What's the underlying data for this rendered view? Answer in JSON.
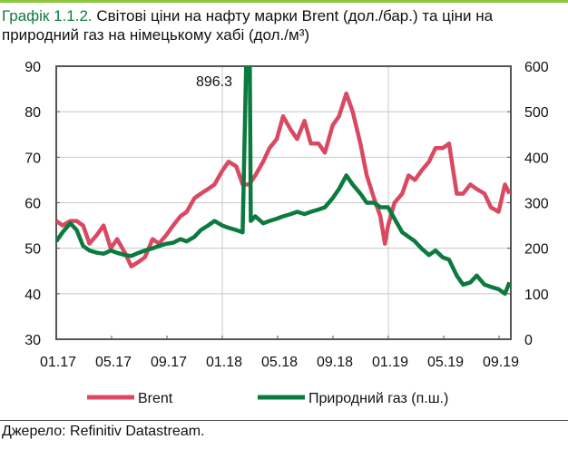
{
  "title": {
    "number": "Графік 1.1.2.",
    "text": "Світові ціни на нафту марки Brent (дол./бар.) та ціни на природний газ на німецькому хабі (дол./м³)"
  },
  "source": "Джерело: Refinitiv Datastream.",
  "colors": {
    "brent": "#d94a62",
    "gas": "#0b7a3e",
    "accent": "#8cc63f"
  },
  "chart_data": {
    "type": "line",
    "xlabel": "",
    "ylabel": "",
    "x_ticks": [
      "01.17",
      "05.17",
      "09.17",
      "01.18",
      "05.18",
      "09.18",
      "01.19",
      "05.19",
      "09.19"
    ],
    "y_left": {
      "lim": [
        30,
        90
      ],
      "ticks": [
        "30",
        "40",
        "50",
        "60",
        "70",
        "80",
        "90"
      ]
    },
    "y_right": {
      "lim": [
        0,
        600
      ],
      "ticks": [
        "0",
        "100",
        "200",
        "300",
        "400",
        "500",
        "600"
      ]
    },
    "grid": true,
    "legend": "bottom",
    "annotation": "896.3",
    "series": [
      {
        "name": "Brent",
        "axis": "left",
        "x": [
          "2017-01-01",
          "2017-01-15",
          "2017-02-01",
          "2017-02-15",
          "2017-03-01",
          "2017-03-15",
          "2017-04-01",
          "2017-04-15",
          "2017-05-01",
          "2017-05-15",
          "2017-06-01",
          "2017-06-15",
          "2017-07-01",
          "2017-07-15",
          "2017-08-01",
          "2017-08-15",
          "2017-09-01",
          "2017-09-15",
          "2017-10-01",
          "2017-10-15",
          "2017-11-01",
          "2017-11-15",
          "2017-12-01",
          "2017-12-15",
          "2018-01-01",
          "2018-01-15",
          "2018-02-01",
          "2018-02-15",
          "2018-03-01",
          "2018-03-15",
          "2018-04-01",
          "2018-04-15",
          "2018-05-01",
          "2018-05-15",
          "2018-06-01",
          "2018-06-15",
          "2018-07-01",
          "2018-07-15",
          "2018-08-01",
          "2018-08-15",
          "2018-09-01",
          "2018-09-15",
          "2018-10-01",
          "2018-10-15",
          "2018-11-01",
          "2018-11-15",
          "2018-12-01",
          "2018-12-15",
          "2018-12-25",
          "2019-01-01",
          "2019-01-15",
          "2019-02-01",
          "2019-02-15",
          "2019-03-01",
          "2019-03-15",
          "2019-04-01",
          "2019-04-15",
          "2019-05-01",
          "2019-05-15",
          "2019-06-01",
          "2019-06-15",
          "2019-07-01",
          "2019-07-15",
          "2019-08-01",
          "2019-08-15",
          "2019-09-01",
          "2019-09-15",
          "2019-09-25"
        ],
        "values": [
          56,
          55,
          56,
          56,
          55,
          51,
          53,
          55,
          50,
          52,
          49,
          46,
          47,
          48,
          52,
          51,
          53,
          55,
          57,
          58,
          61,
          62,
          63,
          64,
          67,
          69,
          68,
          64,
          64,
          66,
          69,
          72,
          74,
          79,
          76,
          74,
          78,
          73,
          73,
          71,
          77,
          79,
          84,
          80,
          73,
          66,
          61,
          57,
          51,
          55,
          60,
          62,
          66,
          65,
          67,
          69,
          72,
          72,
          73,
          62,
          62,
          64,
          63,
          62,
          59,
          58,
          64,
          62
        ]
      },
      {
        "name": "Природний газ (п.ш.)",
        "axis": "right",
        "x": [
          "2017-01-01",
          "2017-01-15",
          "2017-02-01",
          "2017-02-15",
          "2017-03-01",
          "2017-03-15",
          "2017-04-01",
          "2017-04-15",
          "2017-05-01",
          "2017-05-15",
          "2017-06-01",
          "2017-06-15",
          "2017-07-01",
          "2017-07-15",
          "2017-08-01",
          "2017-08-15",
          "2017-09-01",
          "2017-09-15",
          "2017-10-01",
          "2017-10-15",
          "2017-11-01",
          "2017-11-15",
          "2017-12-01",
          "2017-12-15",
          "2018-01-01",
          "2018-01-15",
          "2018-02-01",
          "2018-02-15",
          "2018-03-01",
          "2018-03-05",
          "2018-03-15",
          "2018-04-01",
          "2018-04-15",
          "2018-05-01",
          "2018-05-15",
          "2018-06-01",
          "2018-06-15",
          "2018-07-01",
          "2018-07-15",
          "2018-08-01",
          "2018-08-15",
          "2018-09-01",
          "2018-09-15",
          "2018-10-01",
          "2018-10-15",
          "2018-11-01",
          "2018-11-15",
          "2018-12-01",
          "2018-12-15",
          "2019-01-01",
          "2019-01-15",
          "2019-02-01",
          "2019-02-15",
          "2019-03-01",
          "2019-03-15",
          "2019-04-01",
          "2019-04-15",
          "2019-05-01",
          "2019-05-15",
          "2019-06-01",
          "2019-06-15",
          "2019-07-01",
          "2019-07-15",
          "2019-08-01",
          "2019-08-15",
          "2019-09-01",
          "2019-09-15",
          "2019-09-25"
        ],
        "values": [
          215,
          235,
          255,
          240,
          205,
          195,
          190,
          188,
          195,
          190,
          185,
          183,
          190,
          195,
          200,
          205,
          210,
          212,
          220,
          215,
          225,
          240,
          250,
          260,
          250,
          245,
          240,
          235,
          896.3,
          260,
          270,
          255,
          260,
          265,
          270,
          275,
          280,
          275,
          280,
          285,
          290,
          310,
          330,
          360,
          340,
          320,
          300,
          300,
          290,
          290,
          265,
          235,
          225,
          215,
          200,
          185,
          195,
          180,
          175,
          140,
          120,
          125,
          140,
          120,
          115,
          110,
          100,
          125
        ]
      }
    ]
  }
}
